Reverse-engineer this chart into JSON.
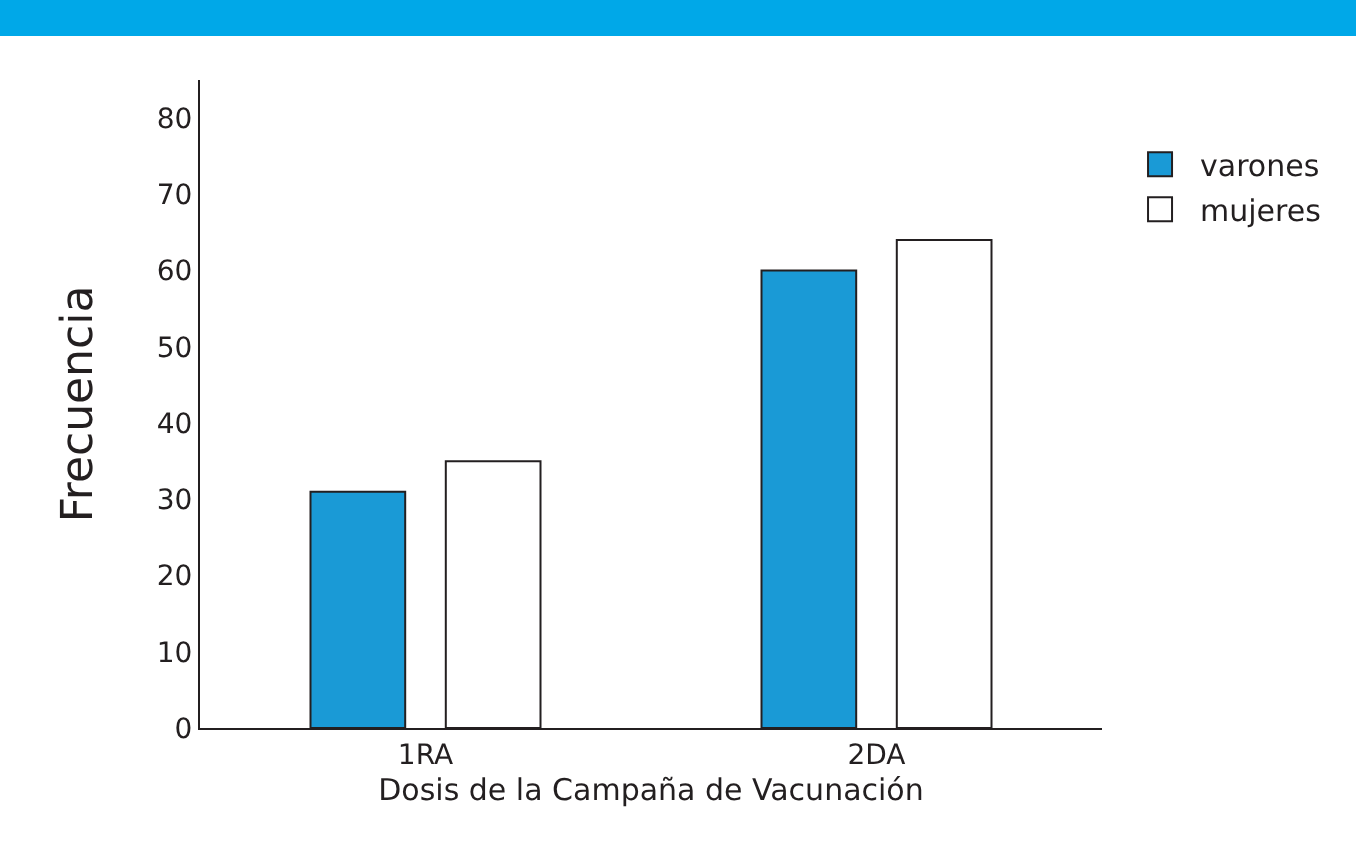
{
  "chart_data": {
    "type": "bar",
    "xlabel": "Dosis de la Campaña de Vacunación",
    "ylabel": "Frecuencia",
    "categories": [
      "1RA",
      "2DA"
    ],
    "series": [
      {
        "name": "varones",
        "color": "#1a9ad6",
        "values": [
          31,
          60
        ]
      },
      {
        "name": "mujeres",
        "color": "#ffffff",
        "values": [
          35,
          64
        ]
      }
    ],
    "ylim": [
      0,
      85
    ],
    "yticks": [
      0,
      10,
      20,
      30,
      40,
      50,
      60,
      70,
      80
    ],
    "grid": false,
    "legend": "top right"
  }
}
